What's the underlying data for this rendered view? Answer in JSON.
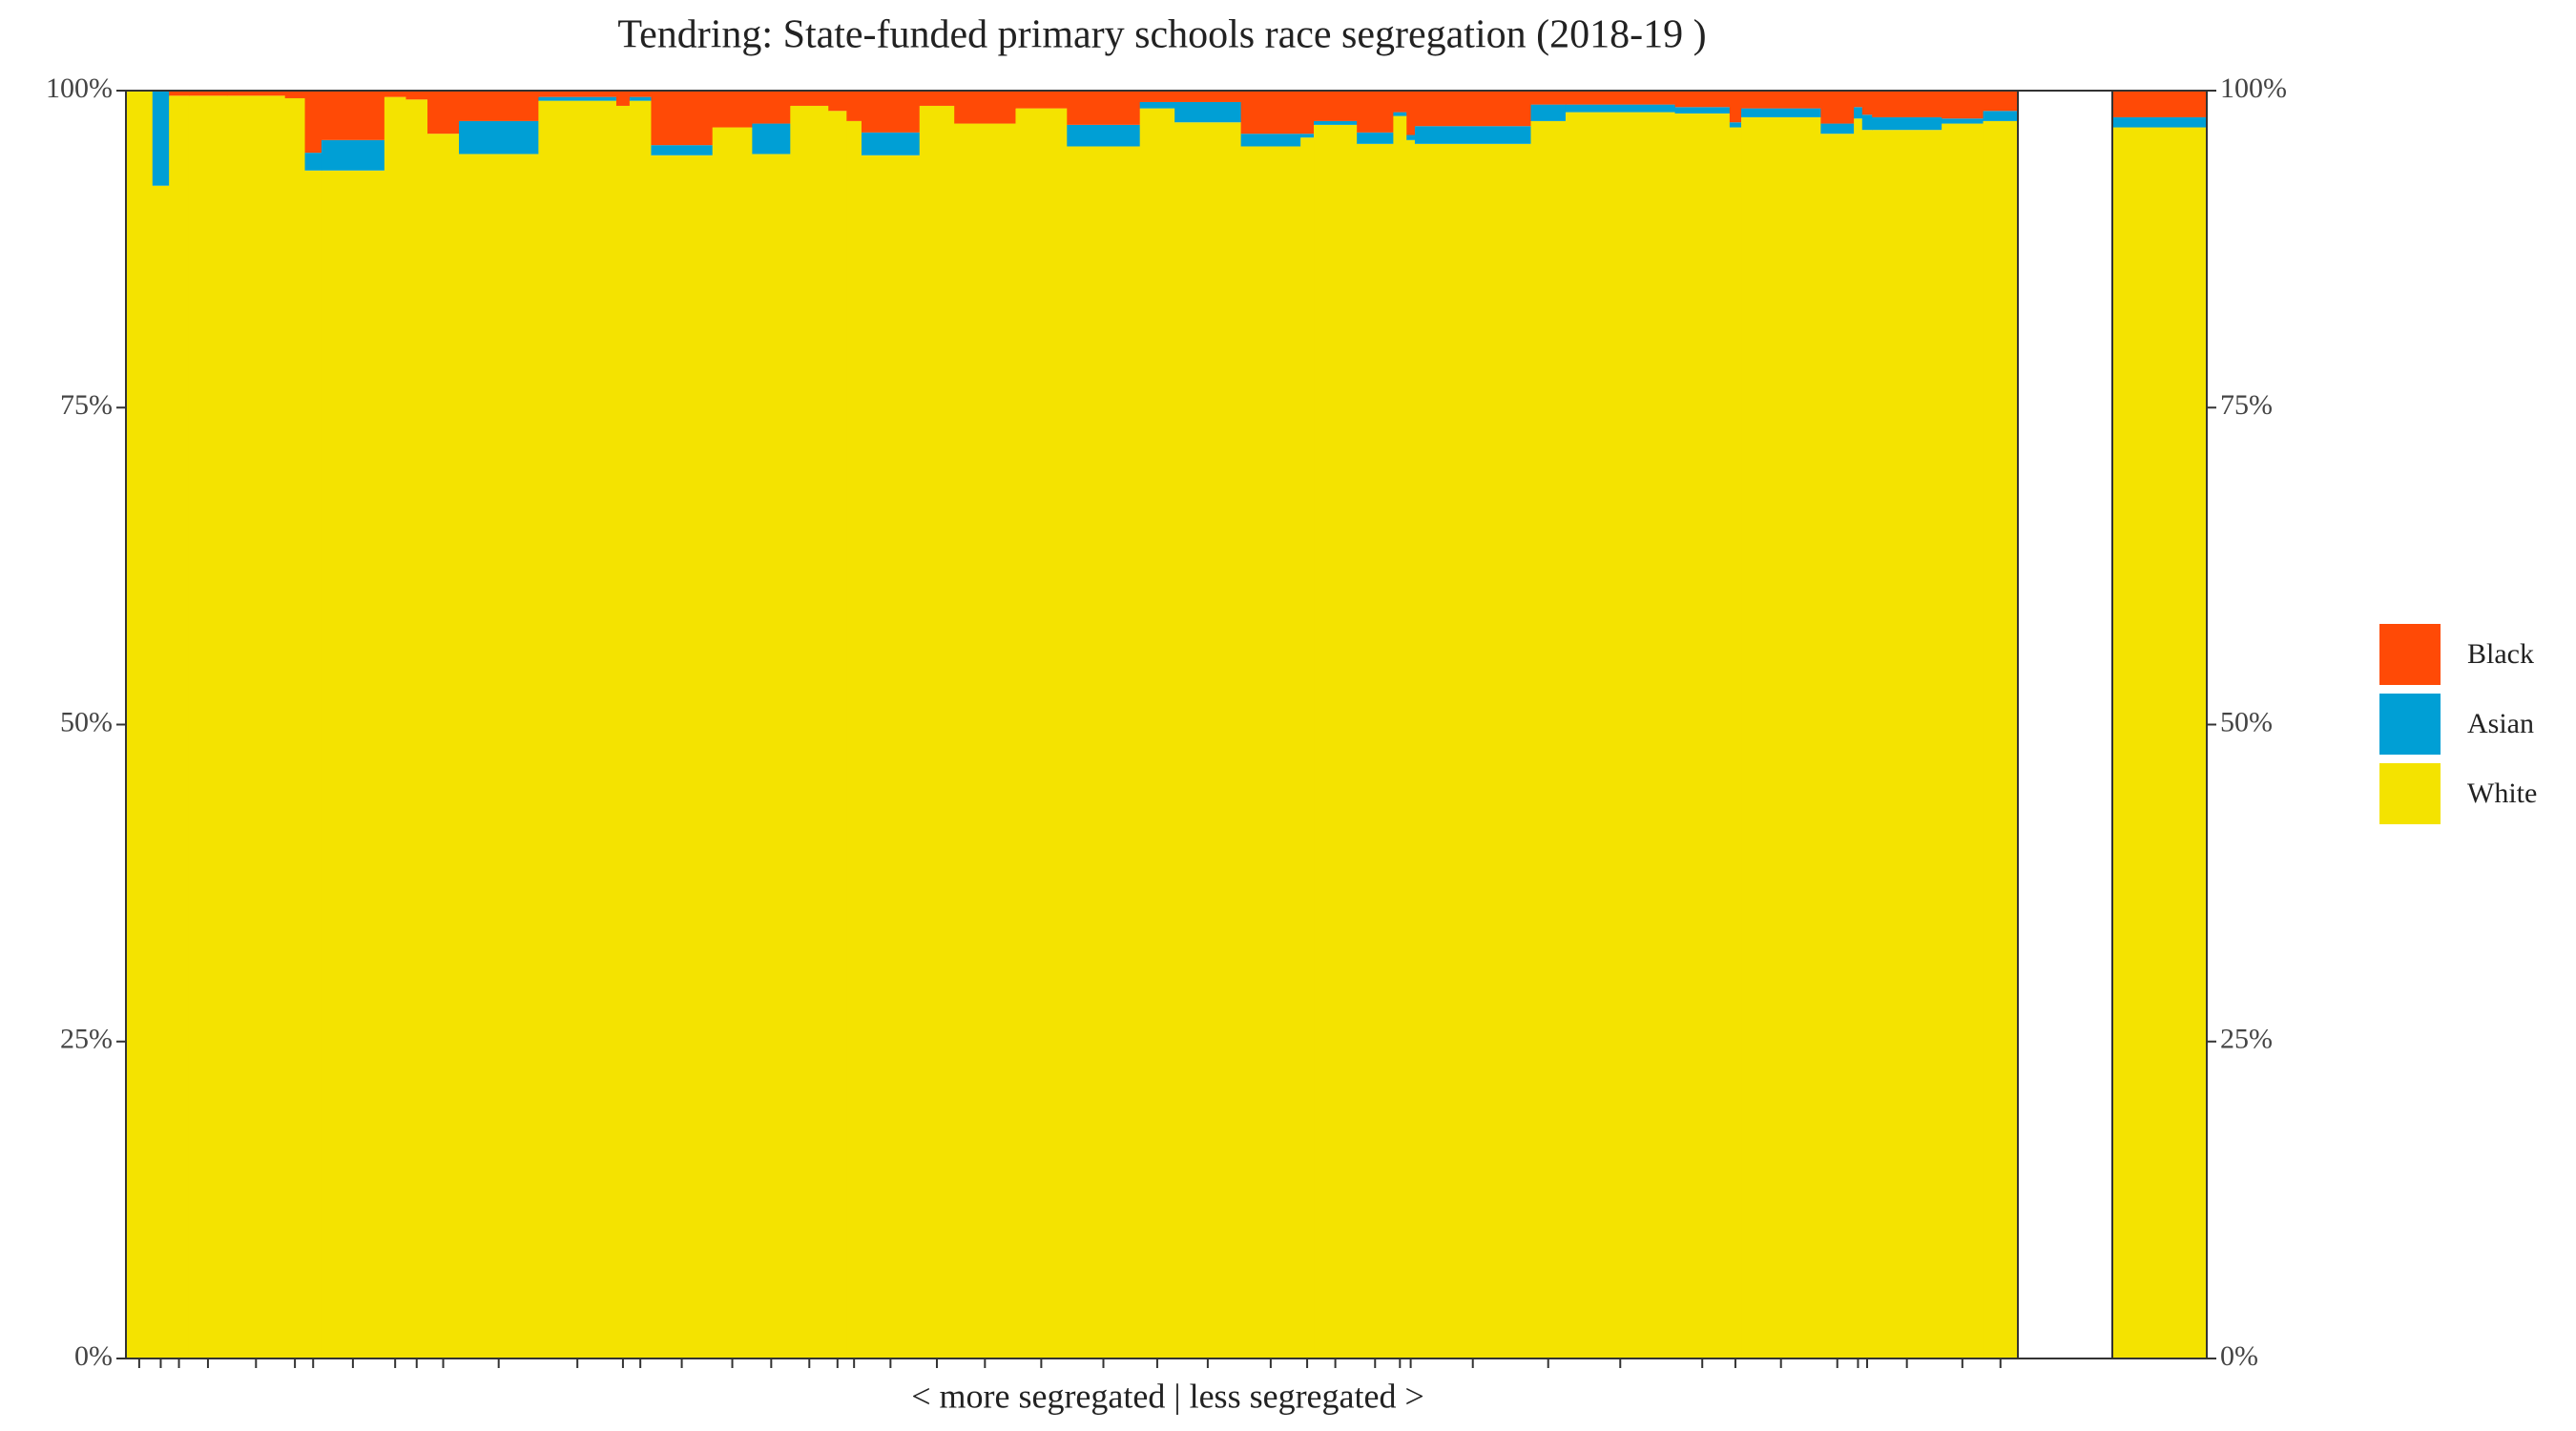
{
  "chart_data": {
    "type": "mosaic",
    "title": "Tendring: State-funded primary schools race segregation (2018-19 )",
    "x_label": "< more segregated | less segregated >",
    "categories": [
      null,
      null,
      null,
      null,
      null,
      null,
      null,
      null,
      null,
      null,
      null,
      null,
      null,
      null,
      null,
      null,
      null,
      null,
      null,
      null,
      null,
      null,
      null,
      null,
      null,
      null,
      null,
      null,
      null,
      null,
      null,
      null,
      null,
      null,
      null,
      null,
      null,
      null,
      null,
      null,
      null,
      null,
      null,
      null,
      null,
      null
    ],
    "widths": [
      16,
      10,
      12,
      23,
      35,
      12,
      10,
      38,
      13,
      13,
      19,
      48,
      47,
      8,
      13,
      37,
      24,
      23,
      23,
      11,
      9,
      35,
      21,
      37,
      31,
      44,
      21,
      40,
      36,
      8,
      26,
      22,
      8,
      5,
      70,
      21,
      66,
      33,
      7,
      48,
      20,
      5,
      6,
      42,
      25,
      21
    ],
    "series": [
      {
        "name": "Black",
        "color": "#ff4a06",
        "values": [
          0,
          0,
          0.4,
          0.4,
          0.4,
          0.6,
          4.9,
          3.9,
          0.5,
          0.7,
          3.4,
          2.4,
          0.5,
          1.2,
          0.5,
          4.3,
          2.9,
          2.6,
          1.2,
          1.6,
          2.4,
          3.3,
          1.2,
          2.6,
          1.4,
          2.7,
          0.9,
          0.9,
          3.4,
          3.4,
          2.4,
          3.3,
          1.7,
          3.5,
          2.8,
          1.1,
          1.1,
          1.3,
          2.5,
          1.4,
          2.6,
          1.3,
          1.9,
          2.1,
          2.2,
          1.6
        ],
        "area_value": 2.1
      },
      {
        "name": "Asian",
        "color": "#009fd5",
        "values": [
          0,
          7.5,
          0,
          0,
          0,
          0,
          1.4,
          2.4,
          0,
          0,
          0,
          2.6,
          0.3,
          0,
          0.3,
          0.8,
          0,
          2.4,
          0,
          0,
          0,
          1.8,
          0,
          0,
          0,
          1.7,
          0.5,
          1.6,
          1.0,
          0.3,
          0.3,
          0.9,
          0.3,
          0.4,
          1.4,
          1.3,
          0.6,
          0.5,
          0.4,
          0.7,
          0.8,
          0.9,
          1.2,
          1.0,
          0.4,
          0.8
        ],
        "area_value": 0.8
      },
      {
        "name": "White",
        "color": "#f4e300",
        "values": [
          100,
          92.5,
          99.6,
          99.6,
          99.6,
          99.4,
          93.7,
          93.7,
          99.5,
          99.3,
          96.6,
          95.0,
          99.2,
          98.8,
          99.2,
          94.9,
          97.1,
          95.0,
          98.8,
          98.4,
          97.6,
          94.9,
          98.8,
          97.4,
          98.6,
          95.6,
          98.6,
          97.5,
          95.6,
          96.3,
          97.3,
          95.8,
          98.0,
          96.1,
          95.8,
          97.6,
          98.3,
          98.2,
          97.1,
          97.9,
          96.6,
          97.8,
          96.9,
          96.9,
          97.4,
          97.6
        ],
        "area_value": 97.1
      }
    ],
    "ylim": [
      0,
      100
    ],
    "yticks": [
      {
        "value": 0,
        "label": "0%"
      },
      {
        "value": 25,
        "label": "25%"
      },
      {
        "value": 50,
        "label": "50%"
      },
      {
        "value": 75,
        "label": "75%"
      },
      {
        "value": 100,
        "label": "100%"
      }
    ],
    "y2lim": [
      0,
      100
    ],
    "y2ticks": [
      {
        "value": 0,
        "label": "0%"
      },
      {
        "value": 25,
        "label": "25%"
      },
      {
        "value": 50,
        "label": "50%"
      },
      {
        "value": 75,
        "label": "75%"
      },
      {
        "value": 100,
        "label": "100%"
      }
    ],
    "legend": "right"
  }
}
